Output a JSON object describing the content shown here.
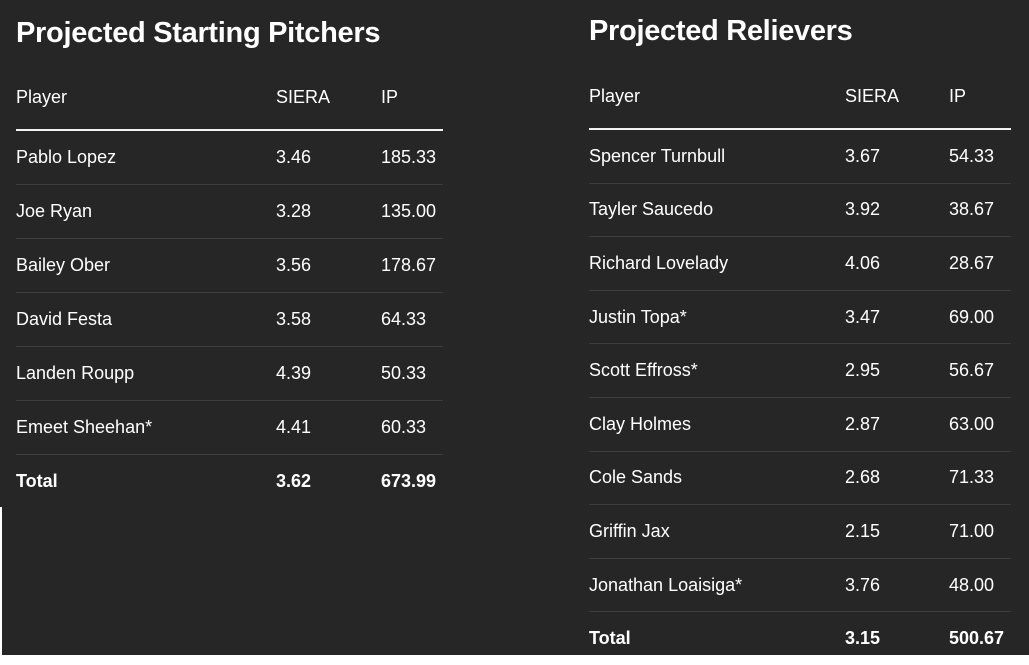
{
  "starters": {
    "title": "Projected Starting Pitchers",
    "headers": {
      "player": "Player",
      "siera": "SIERA",
      "ip": "IP"
    },
    "rows": [
      {
        "player": "Pablo Lopez",
        "siera": "3.46",
        "ip": "185.33"
      },
      {
        "player": "Joe Ryan",
        "siera": "3.28",
        "ip": "135.00"
      },
      {
        "player": "Bailey Ober",
        "siera": "3.56",
        "ip": "178.67"
      },
      {
        "player": "David Festa",
        "siera": "3.58",
        "ip": "64.33"
      },
      {
        "player": "Landen Roupp",
        "siera": "4.39",
        "ip": "50.33"
      },
      {
        "player": "Emeet Sheehan*",
        "siera": "4.41",
        "ip": "60.33"
      }
    ],
    "total": {
      "label": "Total",
      "siera": "3.62",
      "ip": "673.99"
    }
  },
  "relievers": {
    "title": "Projected Relievers",
    "headers": {
      "player": "Player",
      "siera": "SIERA",
      "ip": "IP"
    },
    "rows": [
      {
        "player": "Spencer Turnbull",
        "siera": "3.67",
        "ip": "54.33"
      },
      {
        "player": "Tayler Saucedo",
        "siera": "3.92",
        "ip": "38.67"
      },
      {
        "player": "Richard Lovelady",
        "siera": "4.06",
        "ip": "28.67"
      },
      {
        "player": "Justin Topa*",
        "siera": "3.47",
        "ip": "69.00"
      },
      {
        "player": "Scott Effross*",
        "siera": "2.95",
        "ip": "56.67"
      },
      {
        "player": "Clay Holmes",
        "siera": "2.87",
        "ip": "63.00"
      },
      {
        "player": "Cole Sands",
        "siera": "2.68",
        "ip": "71.33"
      },
      {
        "player": "Griffin Jax",
        "siera": "2.15",
        "ip": "71.00"
      },
      {
        "player": "Jonathan Loaisiga*",
        "siera": "3.76",
        "ip": "48.00"
      }
    ],
    "total": {
      "label": "Total",
      "siera": "3.15",
      "ip": "500.67"
    }
  },
  "colors": {
    "background": "#262626",
    "text": "#ffffff",
    "row_divider": "#3d3d3d"
  }
}
